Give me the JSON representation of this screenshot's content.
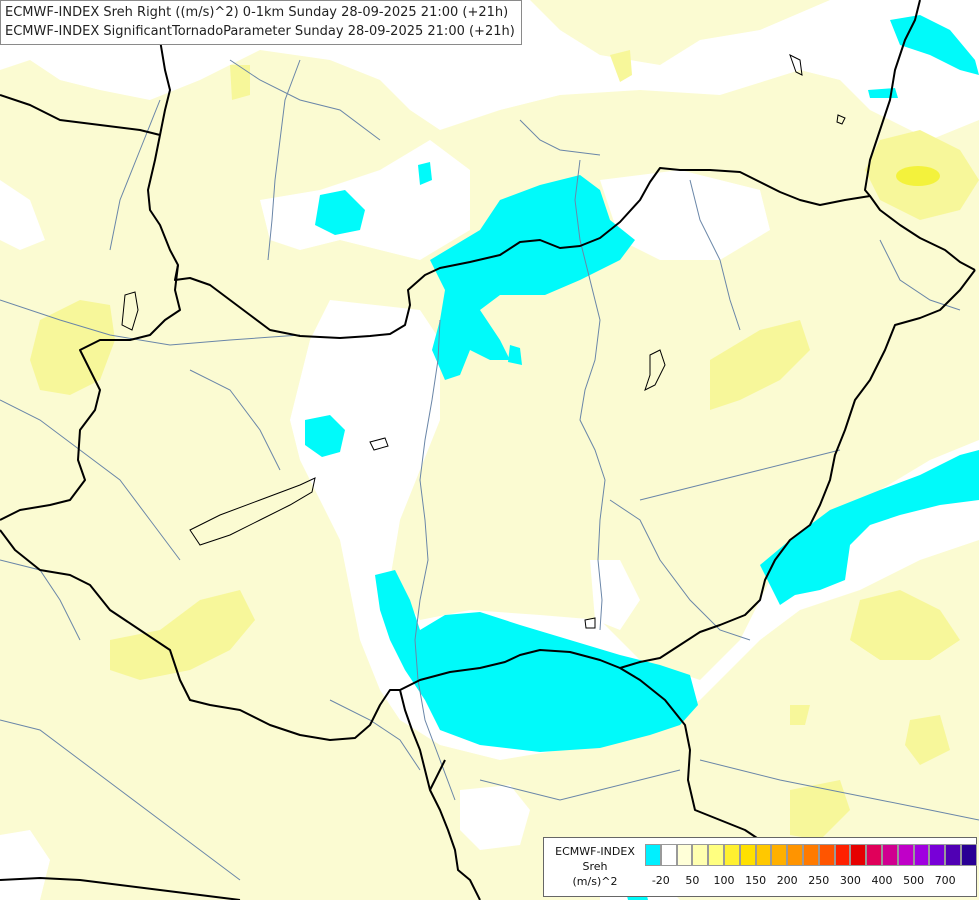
{
  "title": {
    "line1": "ECMWF-INDEX Sreh Right ((m/s)^2) 0-1km Sunday 28-09-2025 21:00 (+21h)",
    "line2": "ECMWF-INDEX SignificantTornadoParameter Sunday 28-09-2025 21:00 (+21h)"
  },
  "colors": {
    "land_pale": "#fbfbd2",
    "land_yellow": "#f7f79a",
    "strong_yellow": "#f3f23c",
    "cyan": "#00fafa",
    "border": "#000000",
    "river": "#6a86a8"
  },
  "legend": {
    "line1": "ECMWF-INDEX",
    "line2": "Sreh",
    "line3": "(m/s)^2",
    "colors": [
      "#00f0ff",
      "#ffffff",
      "#ffffd8",
      "#ffffb0",
      "#ffff80",
      "#fff030",
      "#ffe000",
      "#ffc800",
      "#ffb000",
      "#ff9400",
      "#ff7a00",
      "#ff5500",
      "#ff2000",
      "#e60000",
      "#e0005a",
      "#d00090",
      "#c000c8",
      "#a000e0",
      "#7800d8",
      "#5000b4",
      "#2a0094"
    ],
    "ticks": [
      "-20",
      "50",
      "100",
      "150",
      "200",
      "250",
      "300",
      "400",
      "500",
      "700"
    ]
  }
}
